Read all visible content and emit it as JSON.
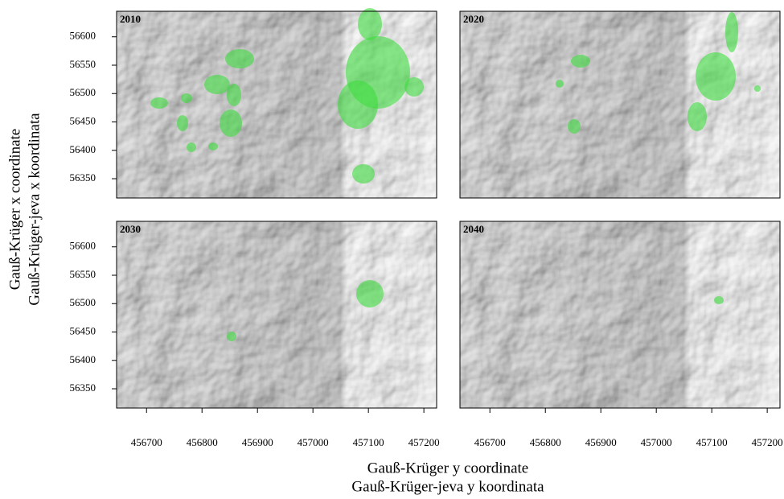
{
  "chart_data": {
    "type": "map",
    "panels": [
      {
        "title": "2010"
      },
      {
        "title": "2020"
      },
      {
        "title": "2030"
      },
      {
        "title": "2040"
      }
    ],
    "xlim": [
      456646,
      457223
    ],
    "ylim": [
      56316,
      56645
    ],
    "xticks": [
      456700,
      456800,
      456900,
      457000,
      457100,
      457200
    ],
    "yticks": [
      56350,
      56400,
      56450,
      56500,
      56550,
      56600
    ],
    "xlabel": [
      "Gauß-Krüger y coordinate",
      "Gauß-Krüger-jeva y koordinata"
    ],
    "ylabel": [
      "Gauß-Krüger x coordinate",
      "Gauß-Krüger-jeva x koordinata"
    ]
  }
}
